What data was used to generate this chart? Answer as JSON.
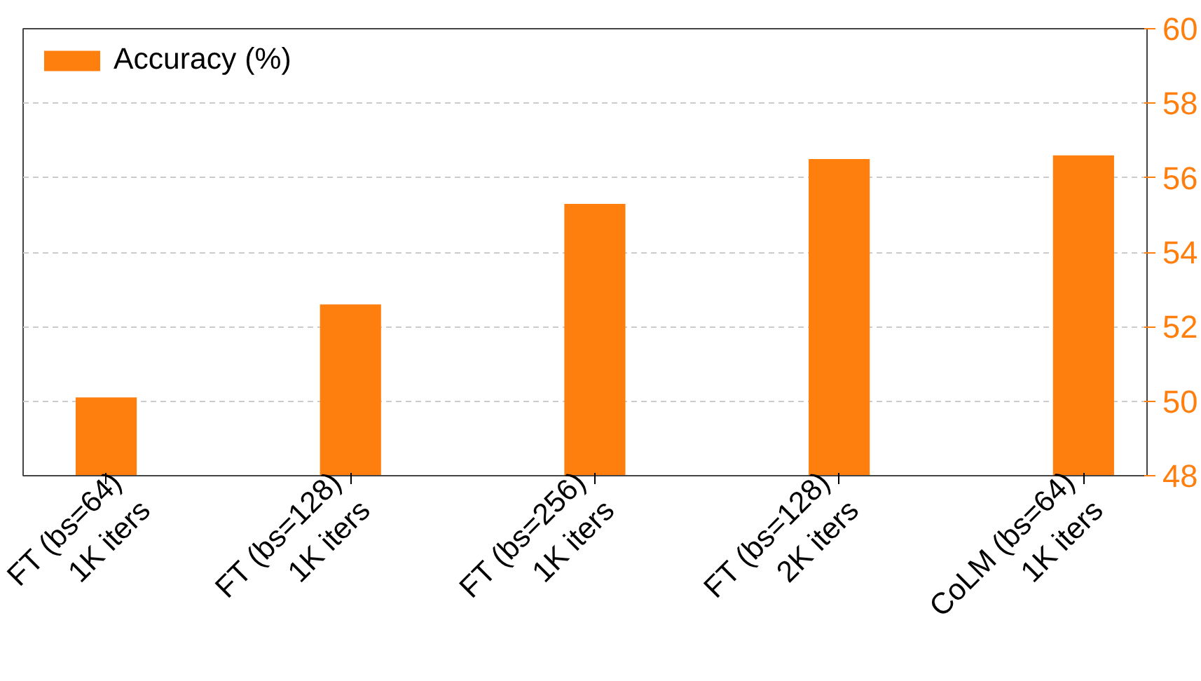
{
  "chart_data": {
    "type": "bar",
    "categories": [
      "FT (bs=64)\n1K iters",
      "FT (bs=128)\n1K iters",
      "FT (bs=256)\n1K iters",
      "FT (bs=128)\n2K iters",
      "CoLM (bs=64)\n1K iters"
    ],
    "series": [
      {
        "name": "Accuracy (%)",
        "color": "#ff7f0e",
        "values": [
          50.1,
          52.6,
          55.3,
          56.5,
          56.6
        ],
        "axis": "y2"
      }
    ],
    "y2lim": [
      48,
      60
    ],
    "y2ticks": [
      48,
      50,
      52,
      54,
      56,
      58,
      60
    ],
    "grid": "y",
    "legend": "top left"
  }
}
